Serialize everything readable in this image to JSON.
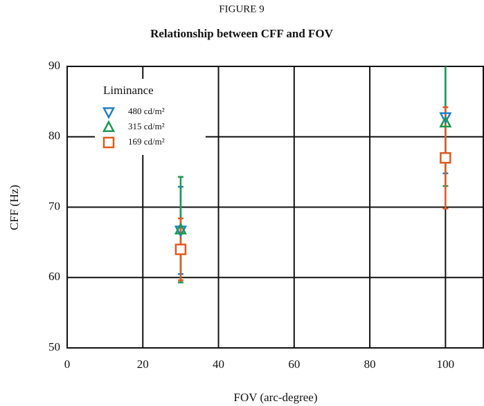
{
  "chart_data": {
    "type": "scatter",
    "figure_label": "FIGURE 9",
    "title": "Relationship between CFF and FOV",
    "xlabel": "FOV (arc-degree)",
    "ylabel": "CFF (Hz)",
    "xlim": [
      0,
      110
    ],
    "xticks": [
      0,
      20,
      40,
      60,
      80,
      100
    ],
    "ylim": [
      50,
      90
    ],
    "yticks": [
      50,
      60,
      70,
      80,
      90
    ],
    "grid": true,
    "legend_title": "Liminance",
    "legend": "upper left",
    "series": [
      {
        "name": "480 cd/m²",
        "color": "#1f7fc8",
        "marker": "triangle-down",
        "x": [
          30,
          100
        ],
        "values": [
          66.7,
          82.8
        ],
        "errors": [
          6.2,
          8
        ]
      },
      {
        "name": "315 cd/m²",
        "color": "#1a9a50",
        "marker": "triangle-up",
        "x": [
          30,
          100
        ],
        "values": [
          66.8,
          82
        ],
        "errors": [
          7.5,
          9
        ]
      },
      {
        "name": "169 cd/m²",
        "color": "#e05a1f",
        "marker": "square",
        "x": [
          30,
          100
        ],
        "values": [
          64,
          77
        ],
        "errors": [
          4.4,
          7.2
        ]
      }
    ]
  }
}
